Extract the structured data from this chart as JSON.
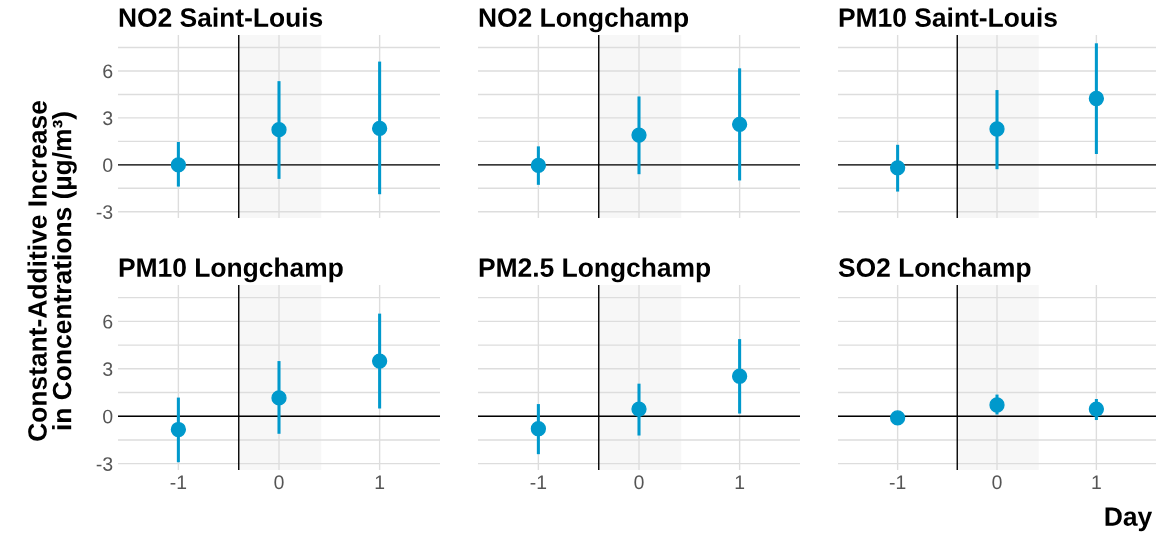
{
  "chart_data": [
    {
      "type": "scatter",
      "title": "NO2 Saint-Louis",
      "ylabel": "Constant-Additive Increase\nin Concentrations (µg/m³)",
      "x": [
        -1,
        0,
        1
      ],
      "series": [
        {
          "color": "#0099cc",
          "values": [
            0,
            2.25,
            2.33
          ],
          "errors": [
            [
              -1.39,
              1.46
            ],
            [
              -0.9,
              5.35
            ],
            [
              -1.88,
              6.6
            ]
          ]
        }
      ],
      "xlim": [
        -1.6,
        1.6
      ],
      "ylim": [
        -3.4,
        8.3
      ],
      "xticks": [
        -1,
        0,
        1
      ],
      "yticks": [
        -3,
        {
          "value": -1.5,
          "label": null
        },
        0,
        {
          "value": 1.5,
          "label": null
        },
        3,
        {
          "value": 4.5,
          "label": null
        },
        6,
        {
          "value": 7.5,
          "label": null
        }
      ],
      "tick_labels": "y",
      "grid": true,
      "marker": "circle",
      "ref_lines": [
        {
          "axis": "y",
          "value": 0,
          "color": "#000000"
        },
        {
          "axis": "x",
          "value": -0.4,
          "color": "#000000"
        }
      ],
      "bands": [
        {
          "axis": "x",
          "from": -0.4,
          "to": 0.42,
          "color": "#f7f7f7"
        }
      ]
    },
    {
      "type": "scatter",
      "title": "NO2 Longchamp",
      "x": [
        -1,
        0,
        1
      ],
      "series": [
        {
          "color": "#0099cc",
          "values": [
            -0.04,
            1.9,
            2.59
          ],
          "errors": [
            [
              -1.28,
              1.18
            ],
            [
              -0.6,
              4.37
            ],
            [
              -1.0,
              6.17
            ]
          ]
        }
      ],
      "xlim": [
        -1.6,
        1.6
      ],
      "ylim": [
        -3.4,
        8.3
      ],
      "xticks": [
        -1,
        0,
        1
      ],
      "yticks": [
        -3,
        -1.5,
        0,
        1.5,
        3,
        4.5,
        6,
        7.5
      ],
      "tick_labels": false,
      "grid": true,
      "marker": "circle",
      "ref_lines": [
        {
          "axis": "y",
          "value": 0,
          "color": "#000000"
        },
        {
          "axis": "x",
          "value": -0.4,
          "color": "#000000"
        }
      ],
      "bands": [
        {
          "axis": "x",
          "from": -0.4,
          "to": 0.42,
          "color": "#f7f7f7"
        }
      ]
    },
    {
      "type": "scatter",
      "title": "PM10 Saint-Louis",
      "x": [
        -1,
        0,
        1
      ],
      "series": [
        {
          "color": "#0099cc",
          "values": [
            -0.19,
            2.29,
            4.24
          ],
          "errors": [
            [
              -1.71,
              1.28
            ],
            [
              -0.28,
              4.78
            ],
            [
              0.69,
              7.77
            ]
          ]
        }
      ],
      "xlim": [
        -1.6,
        1.6
      ],
      "ylim": [
        -3.4,
        8.3
      ],
      "xticks": [
        -1,
        0,
        1
      ],
      "yticks": [
        -3,
        -1.5,
        0,
        1.5,
        3,
        4.5,
        6,
        7.5
      ],
      "tick_labels": false,
      "grid": true,
      "marker": "circle",
      "ref_lines": [
        {
          "axis": "y",
          "value": 0,
          "color": "#000000"
        },
        {
          "axis": "x",
          "value": -0.4,
          "color": "#000000"
        }
      ],
      "bands": [
        {
          "axis": "x",
          "from": -0.4,
          "to": 0.42,
          "color": "#f7f7f7"
        }
      ]
    },
    {
      "type": "scatter",
      "title": "PM10 Longchamp",
      "x": [
        -1,
        0,
        1
      ],
      "series": [
        {
          "color": "#0099cc",
          "values": [
            -0.84,
            1.16,
            3.49
          ],
          "errors": [
            [
              -2.91,
              1.18
            ],
            [
              -1.11,
              3.49
            ],
            [
              0.49,
              6.49
            ]
          ]
        }
      ],
      "xlim": [
        -1.6,
        1.6
      ],
      "ylim": [
        -3.4,
        8.3
      ],
      "xticks": [
        -1,
        0,
        1
      ],
      "yticks": [
        -3,
        {
          "value": -1.5,
          "label": null
        },
        0,
        {
          "value": 1.5,
          "label": null
        },
        3,
        {
          "value": 4.5,
          "label": null
        },
        6,
        {
          "value": 7.5,
          "label": null
        }
      ],
      "grid": true,
      "marker": "circle",
      "ref_lines": [
        {
          "axis": "y",
          "value": 0,
          "color": "#000000"
        },
        {
          "axis": "x",
          "value": -0.4,
          "color": "#000000"
        }
      ],
      "bands": [
        {
          "axis": "x",
          "from": -0.4,
          "to": 0.42,
          "color": "#f7f7f7"
        }
      ]
    },
    {
      "type": "scatter",
      "title": "PM2.5 Longchamp",
      "x": [
        -1,
        0,
        1
      ],
      "series": [
        {
          "color": "#0099cc",
          "values": [
            -0.79,
            0.45,
            2.53
          ],
          "errors": [
            [
              -2.4,
              0.77
            ],
            [
              -1.22,
              2.06
            ],
            [
              0.17,
              4.88
            ]
          ]
        }
      ],
      "xlim": [
        -1.6,
        1.6
      ],
      "ylim": [
        -3.4,
        8.3
      ],
      "xticks": [
        -1,
        0,
        1
      ],
      "yticks": [
        -3,
        -1.5,
        0,
        1.5,
        3,
        4.5,
        6,
        7.5
      ],
      "tick_labels": "x",
      "grid": true,
      "marker": "circle",
      "ref_lines": [
        {
          "axis": "y",
          "value": 0,
          "color": "#000000"
        },
        {
          "axis": "x",
          "value": -0.4,
          "color": "#000000"
        }
      ],
      "bands": [
        {
          "axis": "x",
          "from": -0.4,
          "to": 0.42,
          "color": "#f7f7f7"
        }
      ]
    },
    {
      "type": "scatter",
      "title": "SO2 Lonchamp",
      "xlabel": "Day",
      "x": [
        -1,
        0,
        1
      ],
      "series": [
        {
          "color": "#0099cc",
          "values": [
            -0.1,
            0.71,
            0.45
          ],
          "errors": [
            null,
            [
              0.11,
              1.37
            ],
            [
              -0.24,
              1.09
            ]
          ]
        }
      ],
      "xlim": [
        -1.6,
        1.6
      ],
      "ylim": [
        -3.4,
        8.3
      ],
      "xticks": [
        -1,
        0,
        1
      ],
      "yticks": [
        -3,
        -1.5,
        0,
        1.5,
        3,
        4.5,
        6,
        7.5
      ],
      "tick_labels": "x",
      "grid": true,
      "marker": "circle",
      "ref_lines": [
        {
          "axis": "y",
          "value": 0,
          "color": "#000000"
        },
        {
          "axis": "x",
          "value": -0.4,
          "color": "#000000"
        }
      ],
      "bands": [
        {
          "axis": "x",
          "from": -0.4,
          "to": 0.42,
          "color": "#f7f7f7"
        }
      ]
    }
  ]
}
